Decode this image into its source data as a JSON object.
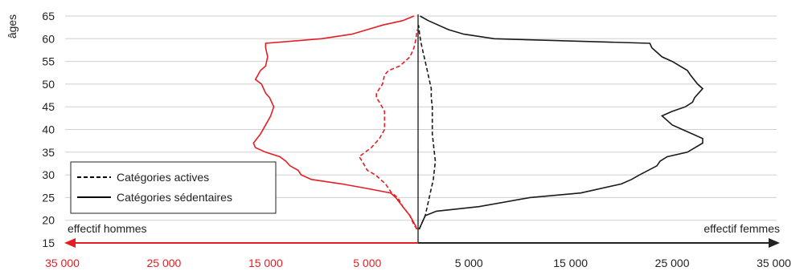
{
  "chart_data": {
    "type": "line",
    "title": "",
    "ylabel": "âges",
    "xlabel_left": "effectif hommes",
    "xlabel_right": "effectif femmes",
    "ylim": [
      15,
      65
    ],
    "y_ticks": [
      "15",
      "20",
      "25",
      "30",
      "35",
      "40",
      "45",
      "50",
      "55",
      "60",
      "65"
    ],
    "x_ticks_left": [
      "35 000",
      "25 000",
      "15 000",
      "5 000"
    ],
    "x_ticks_right": [
      "5 000",
      "15 000",
      "25 000",
      "35 000"
    ],
    "xlim": [
      -35000,
      35000
    ],
    "grid": true,
    "legend_position": "bottom-left",
    "colors": {
      "hommes": "#e31e24",
      "femmes": "#1a1a1a"
    },
    "legend": {
      "actives": "Catégories actives",
      "sedentaires": "Catégories sédentaires"
    },
    "series": [
      {
        "group": "hommes",
        "style": "solid",
        "category": "sedentaires",
        "points": [
          [
            -100,
            18
          ],
          [
            -300,
            19
          ],
          [
            -800,
            21
          ],
          [
            -1500,
            23
          ],
          [
            -2200,
            25
          ],
          [
            -2700,
            26
          ],
          [
            -5000,
            27
          ],
          [
            -7500,
            28
          ],
          [
            -10500,
            29
          ],
          [
            -11500,
            30
          ],
          [
            -11800,
            31
          ],
          [
            -12600,
            32
          ],
          [
            -13000,
            33
          ],
          [
            -13600,
            34
          ],
          [
            -15000,
            35
          ],
          [
            -16000,
            36
          ],
          [
            -16200,
            37
          ],
          [
            -15500,
            39
          ],
          [
            -15000,
            41
          ],
          [
            -14500,
            43
          ],
          [
            -14200,
            45
          ],
          [
            -14600,
            47
          ],
          [
            -15000,
            48
          ],
          [
            -15400,
            50
          ],
          [
            -16000,
            51
          ],
          [
            -15500,
            53
          ],
          [
            -15000,
            54
          ],
          [
            -14800,
            56
          ],
          [
            -15000,
            58
          ],
          [
            -15000,
            59
          ],
          [
            -9500,
            60
          ],
          [
            -6500,
            61
          ],
          [
            -5000,
            62
          ],
          [
            -3500,
            63
          ],
          [
            -1500,
            64
          ],
          [
            -400,
            65
          ]
        ]
      },
      {
        "group": "hommes",
        "style": "dashed",
        "category": "actives",
        "points": [
          [
            -100,
            18
          ],
          [
            -400,
            19
          ],
          [
            -800,
            21
          ],
          [
            -1500,
            23
          ],
          [
            -2000,
            25
          ],
          [
            -2600,
            26
          ],
          [
            -3200,
            28
          ],
          [
            -4200,
            30
          ],
          [
            -5000,
            31
          ],
          [
            -5500,
            33
          ],
          [
            -5800,
            34
          ],
          [
            -4600,
            36
          ],
          [
            -3800,
            38
          ],
          [
            -3300,
            40
          ],
          [
            -3300,
            42
          ],
          [
            -3300,
            44
          ],
          [
            -3800,
            46
          ],
          [
            -4100,
            47
          ],
          [
            -4100,
            48
          ],
          [
            -3500,
            50
          ],
          [
            -3300,
            52
          ],
          [
            -2900,
            53
          ],
          [
            -1800,
            54
          ],
          [
            -1300,
            55
          ],
          [
            -800,
            56
          ],
          [
            -400,
            58
          ],
          [
            -200,
            60
          ],
          [
            -100,
            62
          ]
        ]
      },
      {
        "group": "femmes",
        "style": "solid",
        "category": "sedentaires",
        "points": [
          [
            100,
            18
          ],
          [
            300,
            19
          ],
          [
            700,
            21
          ],
          [
            1800,
            22
          ],
          [
            6000,
            23
          ],
          [
            11000,
            25
          ],
          [
            16000,
            26
          ],
          [
            20000,
            28
          ],
          [
            21000,
            29
          ],
          [
            21800,
            30
          ],
          [
            23500,
            32
          ],
          [
            23800,
            33
          ],
          [
            24500,
            34
          ],
          [
            26500,
            35
          ],
          [
            28000,
            37
          ],
          [
            28000,
            38
          ],
          [
            26000,
            40
          ],
          [
            25000,
            41
          ],
          [
            24000,
            43
          ],
          [
            25000,
            44
          ],
          [
            26300,
            45
          ],
          [
            27000,
            46
          ],
          [
            27200,
            47
          ],
          [
            27600,
            48
          ],
          [
            28000,
            49
          ],
          [
            27500,
            50
          ],
          [
            26800,
            52
          ],
          [
            26500,
            53
          ],
          [
            25000,
            55
          ],
          [
            24000,
            56
          ],
          [
            23000,
            58
          ],
          [
            22800,
            59
          ],
          [
            7500,
            60
          ],
          [
            4500,
            61
          ],
          [
            3000,
            62
          ],
          [
            1000,
            64
          ],
          [
            200,
            65
          ]
        ]
      },
      {
        "group": "femmes",
        "style": "dashed",
        "category": "actives",
        "points": [
          [
            100,
            18
          ],
          [
            300,
            19
          ],
          [
            700,
            21
          ],
          [
            900,
            23
          ],
          [
            1100,
            25
          ],
          [
            1300,
            27
          ],
          [
            1500,
            29
          ],
          [
            1600,
            31
          ],
          [
            1700,
            33
          ],
          [
            1600,
            35
          ],
          [
            1500,
            37
          ],
          [
            1400,
            39
          ],
          [
            1400,
            41
          ],
          [
            1400,
            43
          ],
          [
            1400,
            45
          ],
          [
            1300,
            47
          ],
          [
            1300,
            49
          ],
          [
            1100,
            51
          ],
          [
            900,
            53
          ],
          [
            700,
            55
          ],
          [
            500,
            57
          ],
          [
            300,
            59
          ],
          [
            150,
            61
          ],
          [
            50,
            63
          ]
        ]
      }
    ]
  }
}
